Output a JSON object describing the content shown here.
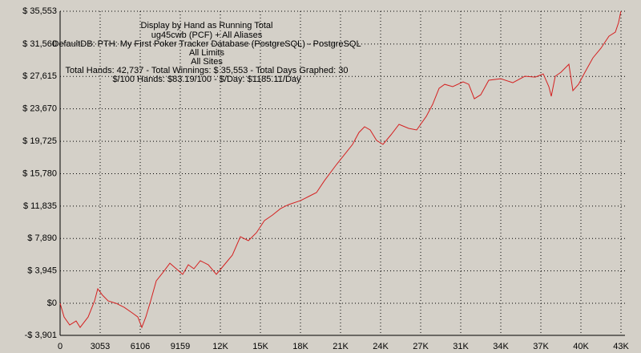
{
  "chart_data": {
    "type": "line",
    "title": "Display by Hand as Running Total",
    "subtitle_lines": [
      "ug45cwb (PCF) + All Aliases",
      "DefaultDB: PTH: My First Poker Tracker Database (PostgreSQL) - PostgreSQL",
      "All Limits",
      "All Sites",
      "Total Hands: 42,737 - Total Winnings: $ 35,553 - Total Days Graphed: 30",
      "$/100 Hands: $83.19/100 - $/Day: $1185.11/Day"
    ],
    "color": "#d42020",
    "grid": true,
    "xlim": [
      0,
      42742
    ],
    "ylim": [
      -3901,
      35553
    ],
    "xticks": [
      0,
      3053,
      6106,
      9159,
      {
        "value": 12212,
        "label": "12K"
      },
      {
        "value": 15265,
        "label": "15K"
      },
      {
        "value": 18318,
        "label": "18K"
      },
      {
        "value": 21371,
        "label": "21K"
      },
      {
        "value": 24424,
        "label": "24K"
      },
      {
        "value": 27477,
        "label": "27K"
      },
      {
        "value": 30530,
        "label": "31K"
      },
      {
        "value": 33583,
        "label": "34K"
      },
      {
        "value": 36636,
        "label": "37K"
      },
      {
        "value": 39689,
        "label": "40K"
      },
      {
        "value": 42742,
        "label": "43K"
      }
    ],
    "yticks": [
      {
        "value": -3901,
        "label": "-$ 3,901"
      },
      {
        "value": 0,
        "label": "$0"
      },
      {
        "value": 3945,
        "label": "$ 3,945"
      },
      {
        "value": 7890,
        "label": "$ 7,890"
      },
      {
        "value": 11835,
        "label": "$ 11,835"
      },
      {
        "value": 15780,
        "label": "$ 15,780"
      },
      {
        "value": 19725,
        "label": "$ 19,725"
      },
      {
        "value": 23670,
        "label": "$ 23,670"
      },
      {
        "value": 27615,
        "label": "$ 27,615"
      },
      {
        "value": 31560,
        "label": "$ 31,560"
      },
      {
        "value": 35553,
        "label": "$ 35,553"
      }
    ],
    "x": [
      0,
      305,
      733,
      1221,
      1527,
      2137,
      2626,
      2870,
      3236,
      3664,
      4274,
      4885,
      5495,
      5923,
      6228,
      6533,
      6900,
      7327,
      7816,
      8365,
      8854,
      9342,
      9770,
      10197,
      10686,
      11296,
      11907,
      12517,
      13128,
      13739,
      14349,
      14960,
      15570,
      16181,
      16792,
      17402,
      18318,
      18929,
      19539,
      20150,
      21066,
      21798,
      22287,
      22775,
      23203,
      23630,
      24119,
      24607,
      25218,
      25828,
      26561,
      27172,
      27904,
      28393,
      28881,
      29309,
      29919,
      30713,
      31141,
      31568,
      32057,
      32667,
      33583,
      34499,
      35415,
      36209,
      36820,
      37247,
      37430,
      37736,
      38163,
      38773,
      39078,
      39506,
      39994,
      40605,
      41216,
      41826,
      42314,
      42558,
      42737
    ],
    "values": [
      0,
      -1660,
      -2640,
      -2150,
      -2930,
      -1660,
      290,
      1760,
      980,
      290,
      0,
      -490,
      -1170,
      -1660,
      -2930,
      -1660,
      290,
      2730,
      3710,
      4880,
      4200,
      3520,
      4690,
      4200,
      5180,
      4690,
      3520,
      4690,
      5860,
      8110,
      7620,
      8590,
      10060,
      10740,
      11520,
      12010,
      12500,
      12990,
      13480,
      14940,
      16900,
      18360,
      19340,
      20800,
      21490,
      21100,
      19830,
      19340,
      20510,
      21780,
      21290,
      21100,
      22750,
      24220,
      26170,
      26660,
      26370,
      26950,
      26660,
      24900,
      25390,
      27150,
      27340,
      26850,
      27640,
      27540,
      27930,
      26370,
      25200,
      27640,
      28120,
      29100,
      25880,
      26660,
      28120,
      29880,
      31050,
      32520,
      33010,
      34180,
      35553
    ]
  }
}
